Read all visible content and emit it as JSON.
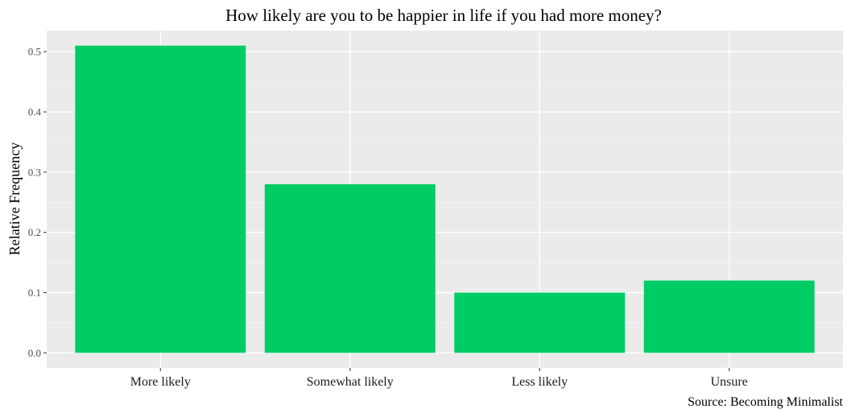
{
  "chart_data": {
    "type": "bar",
    "title": "How likely are you to be happier in life if you had more money?",
    "xlabel": "",
    "ylabel": "Relative Frequency",
    "categories": [
      "More likely",
      "Somewhat likely",
      "Less likely",
      "Unsure"
    ],
    "values": [
      0.51,
      0.28,
      0.1,
      0.12
    ],
    "ylim": [
      -0.025,
      0.535
    ],
    "yticks": [
      0.0,
      0.1,
      0.2,
      0.3,
      0.4,
      0.5
    ],
    "ytick_labels": [
      "0.0",
      "0.1",
      "0.2",
      "0.3",
      "0.4",
      "0.5"
    ],
    "caption": "Source: Becoming Minimalist",
    "grid": true,
    "legend": "none",
    "colors": {
      "bar": "#00CC66",
      "panel": "#EBEBEB",
      "grid_major": "#FFFFFF",
      "grid_minor": "#F5F5F5",
      "tick": "#333333"
    }
  }
}
